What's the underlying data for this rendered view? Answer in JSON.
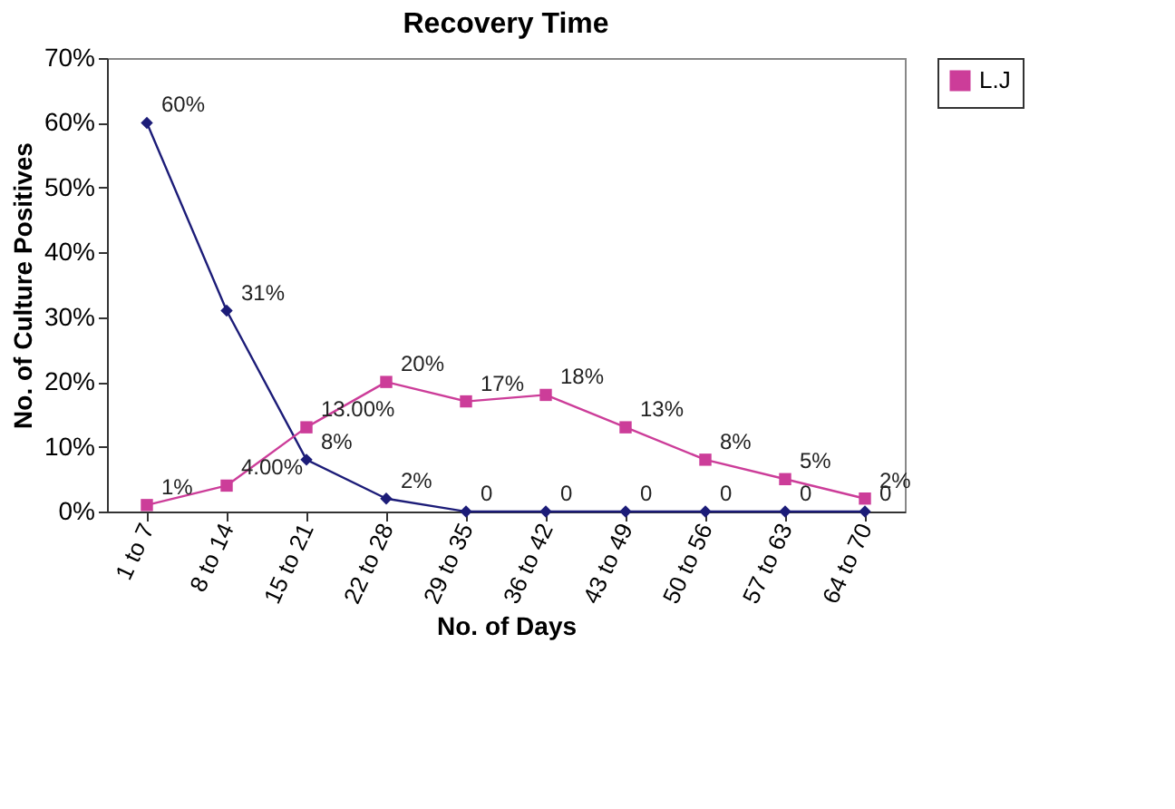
{
  "chart_data": {
    "type": "line",
    "title": "Recovery Time",
    "xlabel": "No. of Days",
    "ylabel": "No. of Culture Positives",
    "categories": [
      "1 to 7",
      "8 to 14",
      "15 to 21",
      "22 to 28",
      "29 to 35",
      "36 to 42",
      "43 to 49",
      "50 to 56",
      "57 to 63",
      "64 to 70"
    ],
    "series": [
      {
        "color": "#1c1c78",
        "marker": "diamond",
        "values": [
          60,
          31,
          8,
          2,
          0,
          0,
          0,
          0,
          0,
          0
        ],
        "value_labels": [
          "60%",
          "31%",
          "8%",
          "2%",
          "0",
          "0",
          "0",
          "0",
          "0",
          "0"
        ]
      },
      {
        "name": "L.J",
        "color": "#cc3d99",
        "marker": "square",
        "values": [
          1,
          4,
          13,
          20,
          17,
          18,
          13,
          8,
          5,
          2
        ],
        "value_labels": [
          "1%",
          "4.00%",
          "13.00%",
          "20%",
          "17%",
          "18%",
          "13%",
          "8%",
          "5%",
          "2%"
        ]
      }
    ],
    "ylim": [
      0,
      70
    ],
    "yticks": [
      {
        "value": 0,
        "label": "0%"
      },
      {
        "value": 10,
        "label": "10%"
      },
      {
        "value": 20,
        "label": "20%"
      },
      {
        "value": 30,
        "label": "30%"
      },
      {
        "value": 40,
        "label": "40%"
      },
      {
        "value": 50,
        "label": "50%"
      },
      {
        "value": 60,
        "label": "60%"
      },
      {
        "value": 70,
        "label": "70%"
      }
    ],
    "grid": false,
    "legend": "right",
    "line_style": "solid"
  }
}
